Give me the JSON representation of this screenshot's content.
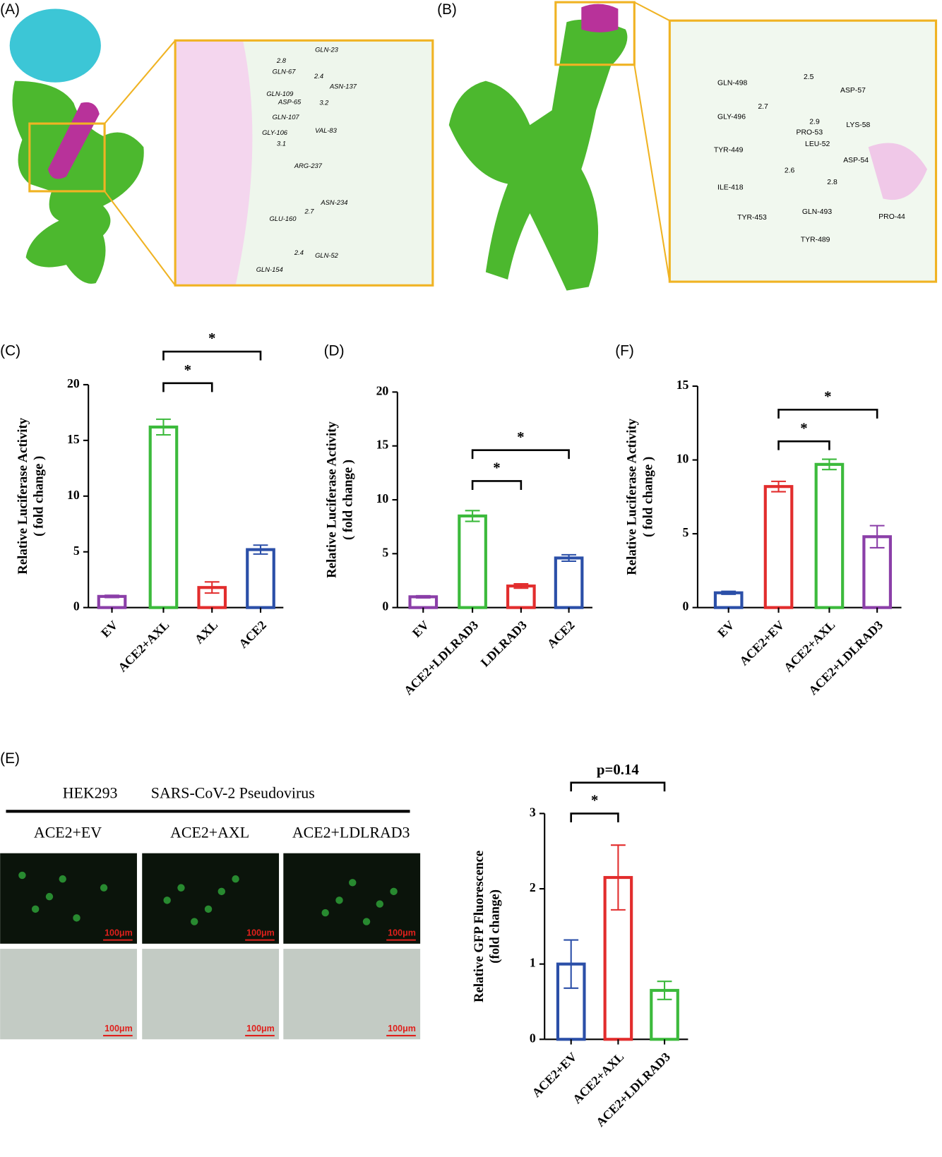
{
  "panels": {
    "A": "(A)",
    "B": "(B)",
    "C": "(C)",
    "D": "(D)",
    "F": "(F)",
    "E": "(E)"
  },
  "panel_A": {
    "residues": [
      "GLN-23",
      "GLN-67",
      "ASN-137",
      "GLN-109",
      "ASP-65",
      "GLN-107",
      "VAL-83",
      "GLY-106",
      "ARG-237",
      "ASN-234",
      "GLU-160",
      "GLN-52",
      "GLN-154"
    ],
    "distances": [
      2.8,
      2.4,
      3.2,
      3.1,
      2.7,
      2.4
    ]
  },
  "panel_B": {
    "residues": [
      "GLN-498",
      "ASP-57",
      "GLY-496",
      "LYS-58",
      "PRO-53",
      "TYR-449",
      "LEU-52",
      "ASP-54",
      "ILE-418",
      "TYR-453",
      "GLN-493",
      "PRO-44",
      "TYR-489"
    ],
    "distances": [
      2.5,
      2.7,
      2.9,
      2.6,
      2.8
    ]
  },
  "panel_E_images": {
    "header_left": "HEK293",
    "header_right": "SARS-CoV-2 Pseudovirus",
    "columns": [
      "ACE2+EV",
      "ACE2+AXL",
      "ACE2+LDLRAD3"
    ],
    "scale_bar": "100μm"
  },
  "chart_data": [
    {
      "type": "bar",
      "ylabel": [
        "Relative Luciferase Activity",
        "( fold change )"
      ],
      "categories": [
        "EV",
        "ACE2+AXL",
        "AXL",
        "ACE2"
      ],
      "values": [
        1.0,
        16.2,
        1.8,
        5.2
      ],
      "errors": [
        0.1,
        0.7,
        0.5,
        0.4
      ],
      "colors": [
        "#8b3fa8",
        "#3cba3c",
        "#e22d2d",
        "#2b4fa8"
      ],
      "ylim": [
        0,
        20
      ],
      "yticks": [
        0,
        5,
        10,
        15,
        20
      ],
      "brackets": [
        {
          "between": [
            1,
            2
          ],
          "label": "*"
        },
        {
          "between": [
            1,
            3
          ],
          "label": "*"
        }
      ]
    },
    {
      "type": "bar",
      "ylabel": [
        "Relative Luciferase Activity",
        "( fold change )"
      ],
      "categories": [
        "EV",
        "ACE2+LDLRAD3",
        "LDLRAD3",
        "ACE2"
      ],
      "values": [
        1.0,
        8.5,
        2.0,
        4.6
      ],
      "errors": [
        0.1,
        0.5,
        0.2,
        0.3
      ],
      "colors": [
        "#8b3fa8",
        "#3cba3c",
        "#e22d2d",
        "#2b4fa8"
      ],
      "ylim": [
        0,
        20
      ],
      "yticks": [
        0,
        5,
        10,
        15,
        20
      ],
      "brackets": [
        {
          "between": [
            1,
            2
          ],
          "label": "*"
        },
        {
          "between": [
            1,
            3
          ],
          "label": "*"
        }
      ]
    },
    {
      "type": "bar",
      "ylabel": [
        "Relative Luciferase Activity",
        "( fold change )"
      ],
      "categories": [
        "EV",
        "ACE2+EV",
        "ACE2+AXL",
        "ACE2+LDLRAD3"
      ],
      "values": [
        1.0,
        8.2,
        9.7,
        4.8
      ],
      "errors": [
        0.1,
        0.35,
        0.35,
        0.75
      ],
      "colors": [
        "#2b4fa8",
        "#e22d2d",
        "#3cba3c",
        "#8b3fa8"
      ],
      "ylim": [
        0,
        15
      ],
      "yticks": [
        0,
        5,
        10,
        15
      ],
      "brackets": [
        {
          "between": [
            1,
            2
          ],
          "label": "*"
        },
        {
          "between": [
            1,
            3
          ],
          "label": "*"
        }
      ]
    },
    {
      "type": "bar",
      "ylabel": [
        "Relative GFP Fluorescence",
        "(fold change)"
      ],
      "categories": [
        "ACE2+EV",
        "ACE2+AXL",
        "ACE2+LDLRAD3"
      ],
      "values": [
        1.0,
        2.15,
        0.65
      ],
      "errors": [
        0.32,
        0.43,
        0.12
      ],
      "colors": [
        "#2b4fa8",
        "#e22d2d",
        "#3cba3c"
      ],
      "ylim": [
        0,
        3
      ],
      "yticks": [
        0,
        1,
        2,
        3
      ],
      "brackets": [
        {
          "between": [
            0,
            1
          ],
          "label": "*"
        },
        {
          "between": [
            0,
            2
          ],
          "label": "p=0.14"
        }
      ]
    }
  ]
}
